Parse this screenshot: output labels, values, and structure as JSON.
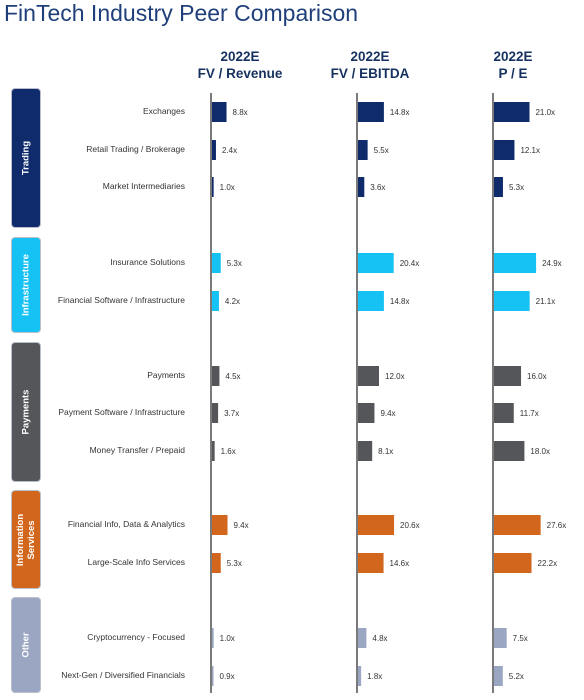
{
  "title": "FinTech Industry Peer Comparison",
  "colors": {
    "Trading": "#0f2b6b",
    "Infrastructure": "#16c1f3",
    "Payments": "#545659",
    "Information Services": "#d2661d",
    "Other": "#9aa6c2"
  },
  "chart_data": {
    "type": "bar",
    "orientation": "horizontal",
    "title": "FinTech Industry Peer Comparison",
    "groups": [
      {
        "name": "Trading",
        "categories": [
          "Exchanges",
          "Retail Trading / Brokerage",
          "Market Intermediaries"
        ]
      },
      {
        "name": "Infrastructure",
        "categories": [
          "Insurance Solutions",
          "Financial Software / Infrastructure"
        ]
      },
      {
        "name": "Payments",
        "categories": [
          "Payments",
          "Payment Software / Infrastructure",
          "Money Transfer / Prepaid"
        ]
      },
      {
        "name": "Information\nServices",
        "categories": [
          "Financial Info, Data & Analytics",
          "Large-Scale Info Services"
        ]
      },
      {
        "name": "Other",
        "categories": [
          "Cryptocurrency - Focused",
          "Next-Gen / Diversified Financials"
        ]
      }
    ],
    "series": [
      {
        "name": "2022E\nFV / Revenue",
        "labels": [
          "8.8x",
          "2.4x",
          "1.0x",
          "5.3x",
          "4.2x",
          "4.5x",
          "3.7x",
          "1.6x",
          "9.4x",
          "5.3x",
          "1.0x",
          "0.9x"
        ],
        "values": [
          8.8,
          2.4,
          1.0,
          5.3,
          4.2,
          4.5,
          3.7,
          1.6,
          9.4,
          5.3,
          1.0,
          0.9
        ]
      },
      {
        "name": "2022E\nFV / EBITDA",
        "labels": [
          "14.8x",
          "5.5x",
          "3.6x",
          "20.4x",
          "14.8x",
          "12.0x",
          "9.4x",
          "8.1x",
          "20.6x",
          "14.6x",
          "4.8x",
          "1.8x"
        ],
        "values": [
          14.8,
          5.5,
          3.6,
          20.4,
          14.8,
          12.0,
          9.4,
          8.1,
          20.6,
          14.6,
          4.8,
          1.8
        ]
      },
      {
        "name": "2022E\nP / E",
        "labels": [
          "21.0x",
          "12.1x",
          "5.3x",
          "24.9x",
          "21.1x",
          "16.0x",
          "11.7x",
          "18.0x",
          "27.6x",
          "22.2x",
          "7.5x",
          "5.2x"
        ],
        "values": [
          21.0,
          12.1,
          5.3,
          24.9,
          21.1,
          16.0,
          11.7,
          18.0,
          27.6,
          22.2,
          7.5,
          5.2
        ]
      }
    ]
  }
}
